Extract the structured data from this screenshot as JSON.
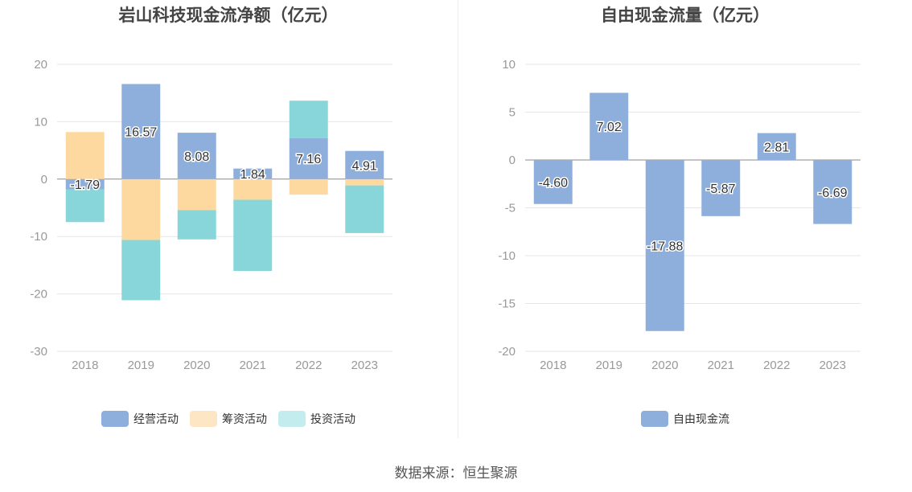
{
  "source_text": "数据来源：恒生聚源",
  "colors": {
    "operating": "#8eaedc",
    "financing": "#fdd9a0",
    "investing": "#88d6da",
    "free_cash_flow": "#8eaedc"
  },
  "chart_data": [
    {
      "id": "net-cash-flow",
      "type": "bar",
      "stacked": true,
      "title": "岩山科技现金流净额（亿元）",
      "categories": [
        "2018",
        "2019",
        "2020",
        "2021",
        "2022",
        "2023"
      ],
      "ylim": [
        -30,
        20
      ],
      "yticks": [
        20,
        10,
        0,
        -10,
        -20,
        -30
      ],
      "ytick_labels": [
        "20",
        "10",
        "0",
        "-10",
        "-20",
        "-30"
      ],
      "series": [
        {
          "name": "经营活动",
          "color_key": "operating",
          "values": [
            -1.79,
            16.57,
            8.08,
            1.84,
            7.16,
            4.91
          ],
          "data_labels": [
            "-1.79",
            "16.57",
            "8.08",
            "1.84",
            "7.16",
            "4.91"
          ]
        },
        {
          "name": "筹资活动",
          "color_key": "financing",
          "values": [
            8.2,
            -10.6,
            -5.4,
            -3.6,
            -2.7,
            -1.1
          ]
        },
        {
          "name": "投资活动",
          "color_key": "investing",
          "values": [
            -5.7,
            -10.5,
            -5.1,
            -12.4,
            6.5,
            -8.3
          ]
        }
      ],
      "legend": [
        "经营活动",
        "筹资活动",
        "投资活动"
      ],
      "legend_position": "bottom"
    },
    {
      "id": "free-cash-flow",
      "type": "bar",
      "title": "自由现金流量（亿元）",
      "categories": [
        "2018",
        "2019",
        "2020",
        "2021",
        "2022",
        "2023"
      ],
      "ylim": [
        -20,
        10
      ],
      "yticks": [
        10,
        5,
        0,
        -5,
        -10,
        -15,
        -20
      ],
      "ytick_labels": [
        "10",
        "5",
        "0",
        "-5",
        "-10",
        "-15",
        "-20"
      ],
      "series": [
        {
          "name": "自由现金流",
          "color_key": "free_cash_flow",
          "values": [
            -4.6,
            7.02,
            -17.88,
            -5.87,
            2.81,
            -6.69
          ],
          "data_labels": [
            "-4.60",
            "7.02",
            "-17.88",
            "-5.87",
            "2.81",
            "-6.69"
          ]
        }
      ],
      "legend": [
        "自由现金流"
      ],
      "legend_position": "bottom"
    }
  ]
}
